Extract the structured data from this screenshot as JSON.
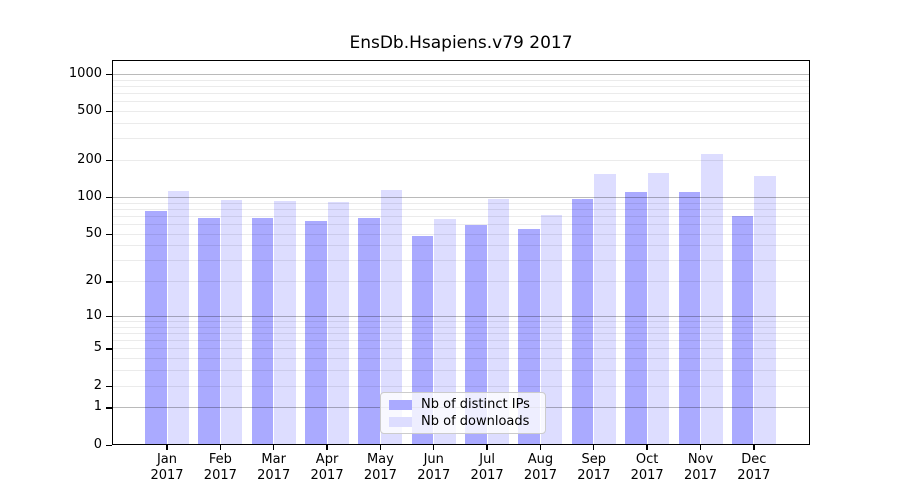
{
  "title": "EnsDb.Hsapiens.v79 2017",
  "colors": {
    "bar_ips": "#aaaaff",
    "bar_downloads": "#ddddff",
    "grid_major": "rgba(0,0,0,0.27)",
    "grid_minor": "rgba(0,0,0,0.08)",
    "axis": "#000000",
    "legend_border": "#cccccc",
    "legend_bg": "rgba(255,255,255,0.8)",
    "text": "#000000"
  },
  "chart_data": {
    "type": "bar",
    "title": "EnsDb.Hsapiens.v79 2017",
    "scale": "log1p",
    "grid": "on",
    "legend_position": "inside-bottom-center",
    "xlabel": "",
    "ylabel": "",
    "year": "2017",
    "months": [
      "Jan",
      "Feb",
      "Mar",
      "Apr",
      "May",
      "Jun",
      "Jul",
      "Aug",
      "Sep",
      "Oct",
      "Nov",
      "Dec"
    ],
    "categories": [
      "Jan 2017",
      "Feb 2017",
      "Mar 2017",
      "Apr 2017",
      "May 2017",
      "Jun 2017",
      "Jul 2017",
      "Aug 2017",
      "Sep 2017",
      "Oct 2017",
      "Nov 2017",
      "Dec 2017"
    ],
    "series": [
      {
        "name": "Nb of distinct IPs",
        "color": "#aaaaff",
        "values": [
          78,
          68,
          68,
          64,
          68,
          48,
          60,
          55,
          97,
          110,
          110,
          71
        ]
      },
      {
        "name": "Nb of downloads",
        "color": "#ddddff",
        "values": [
          113,
          96,
          94,
          92,
          115,
          66,
          98,
          72,
          155,
          157,
          226,
          151
        ]
      }
    ],
    "yticks": [
      0,
      1,
      2,
      5,
      10,
      20,
      50,
      100,
      200,
      500,
      1000
    ],
    "ylim": [
      0,
      1300
    ],
    "grid_major_at": [
      1,
      10,
      100,
      1000
    ]
  }
}
